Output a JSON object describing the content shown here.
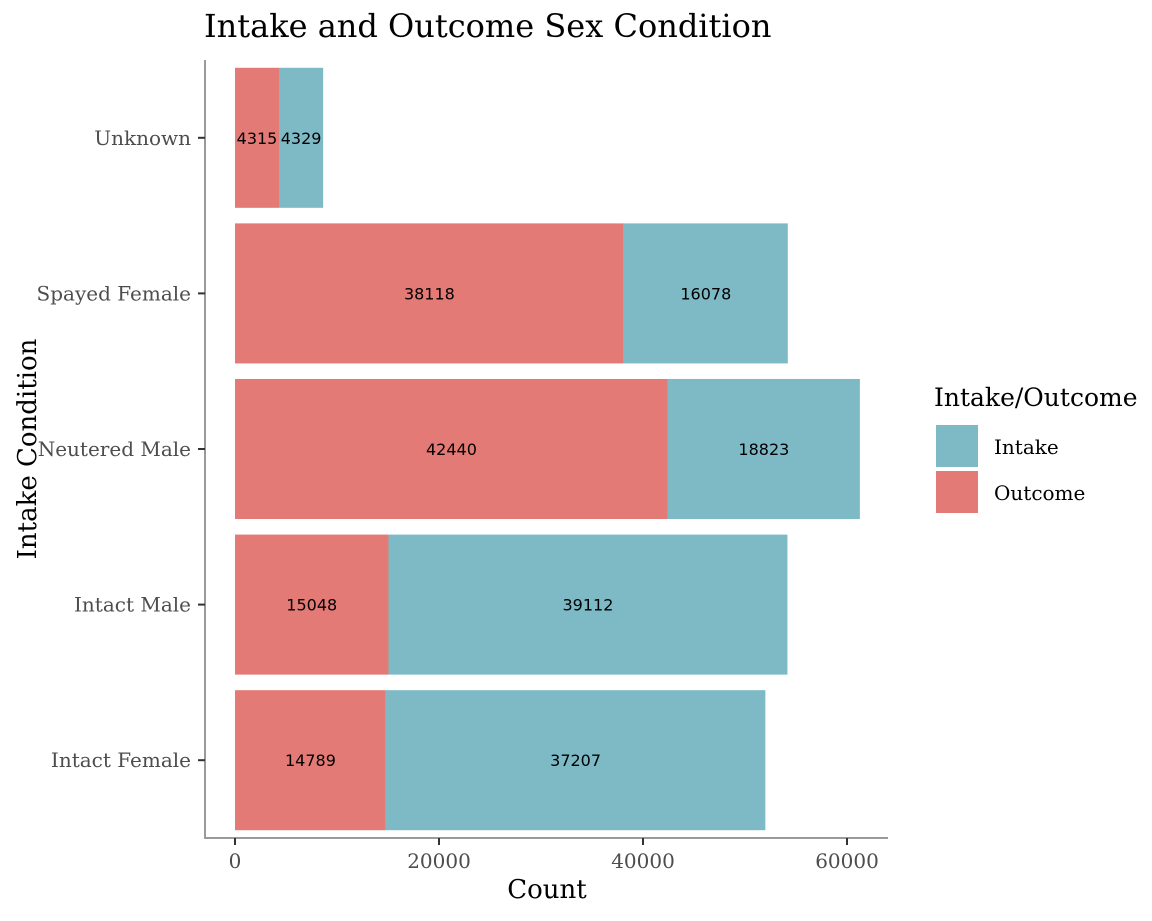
{
  "chart_data": {
    "type": "bar",
    "orientation": "horizontal",
    "stacked": true,
    "title": "Intake and Outcome Sex Condition",
    "xlabel": "Count",
    "ylabel": "Intake Condition",
    "categories": [
      "Intact Female",
      "Intact Male",
      "Neutered Male",
      "Spayed Female",
      "Unknown"
    ],
    "series": [
      {
        "name": "Outcome",
        "color": "#E37A75",
        "values": [
          14789,
          15048,
          42440,
          38118,
          4315
        ]
      },
      {
        "name": "Intake",
        "color": "#7DBAC6",
        "values": [
          37207,
          39112,
          18823,
          16078,
          4329
        ]
      }
    ],
    "xlim": [
      0,
      64000
    ],
    "xticks": [
      0,
      20000,
      40000,
      60000
    ],
    "xtick_labels": [
      "0",
      "20000",
      "40000",
      "60000"
    ],
    "legend": {
      "title": "Intake/Outcome",
      "position": "right",
      "entries": [
        "Intake",
        "Outcome"
      ]
    },
    "grid": false
  }
}
